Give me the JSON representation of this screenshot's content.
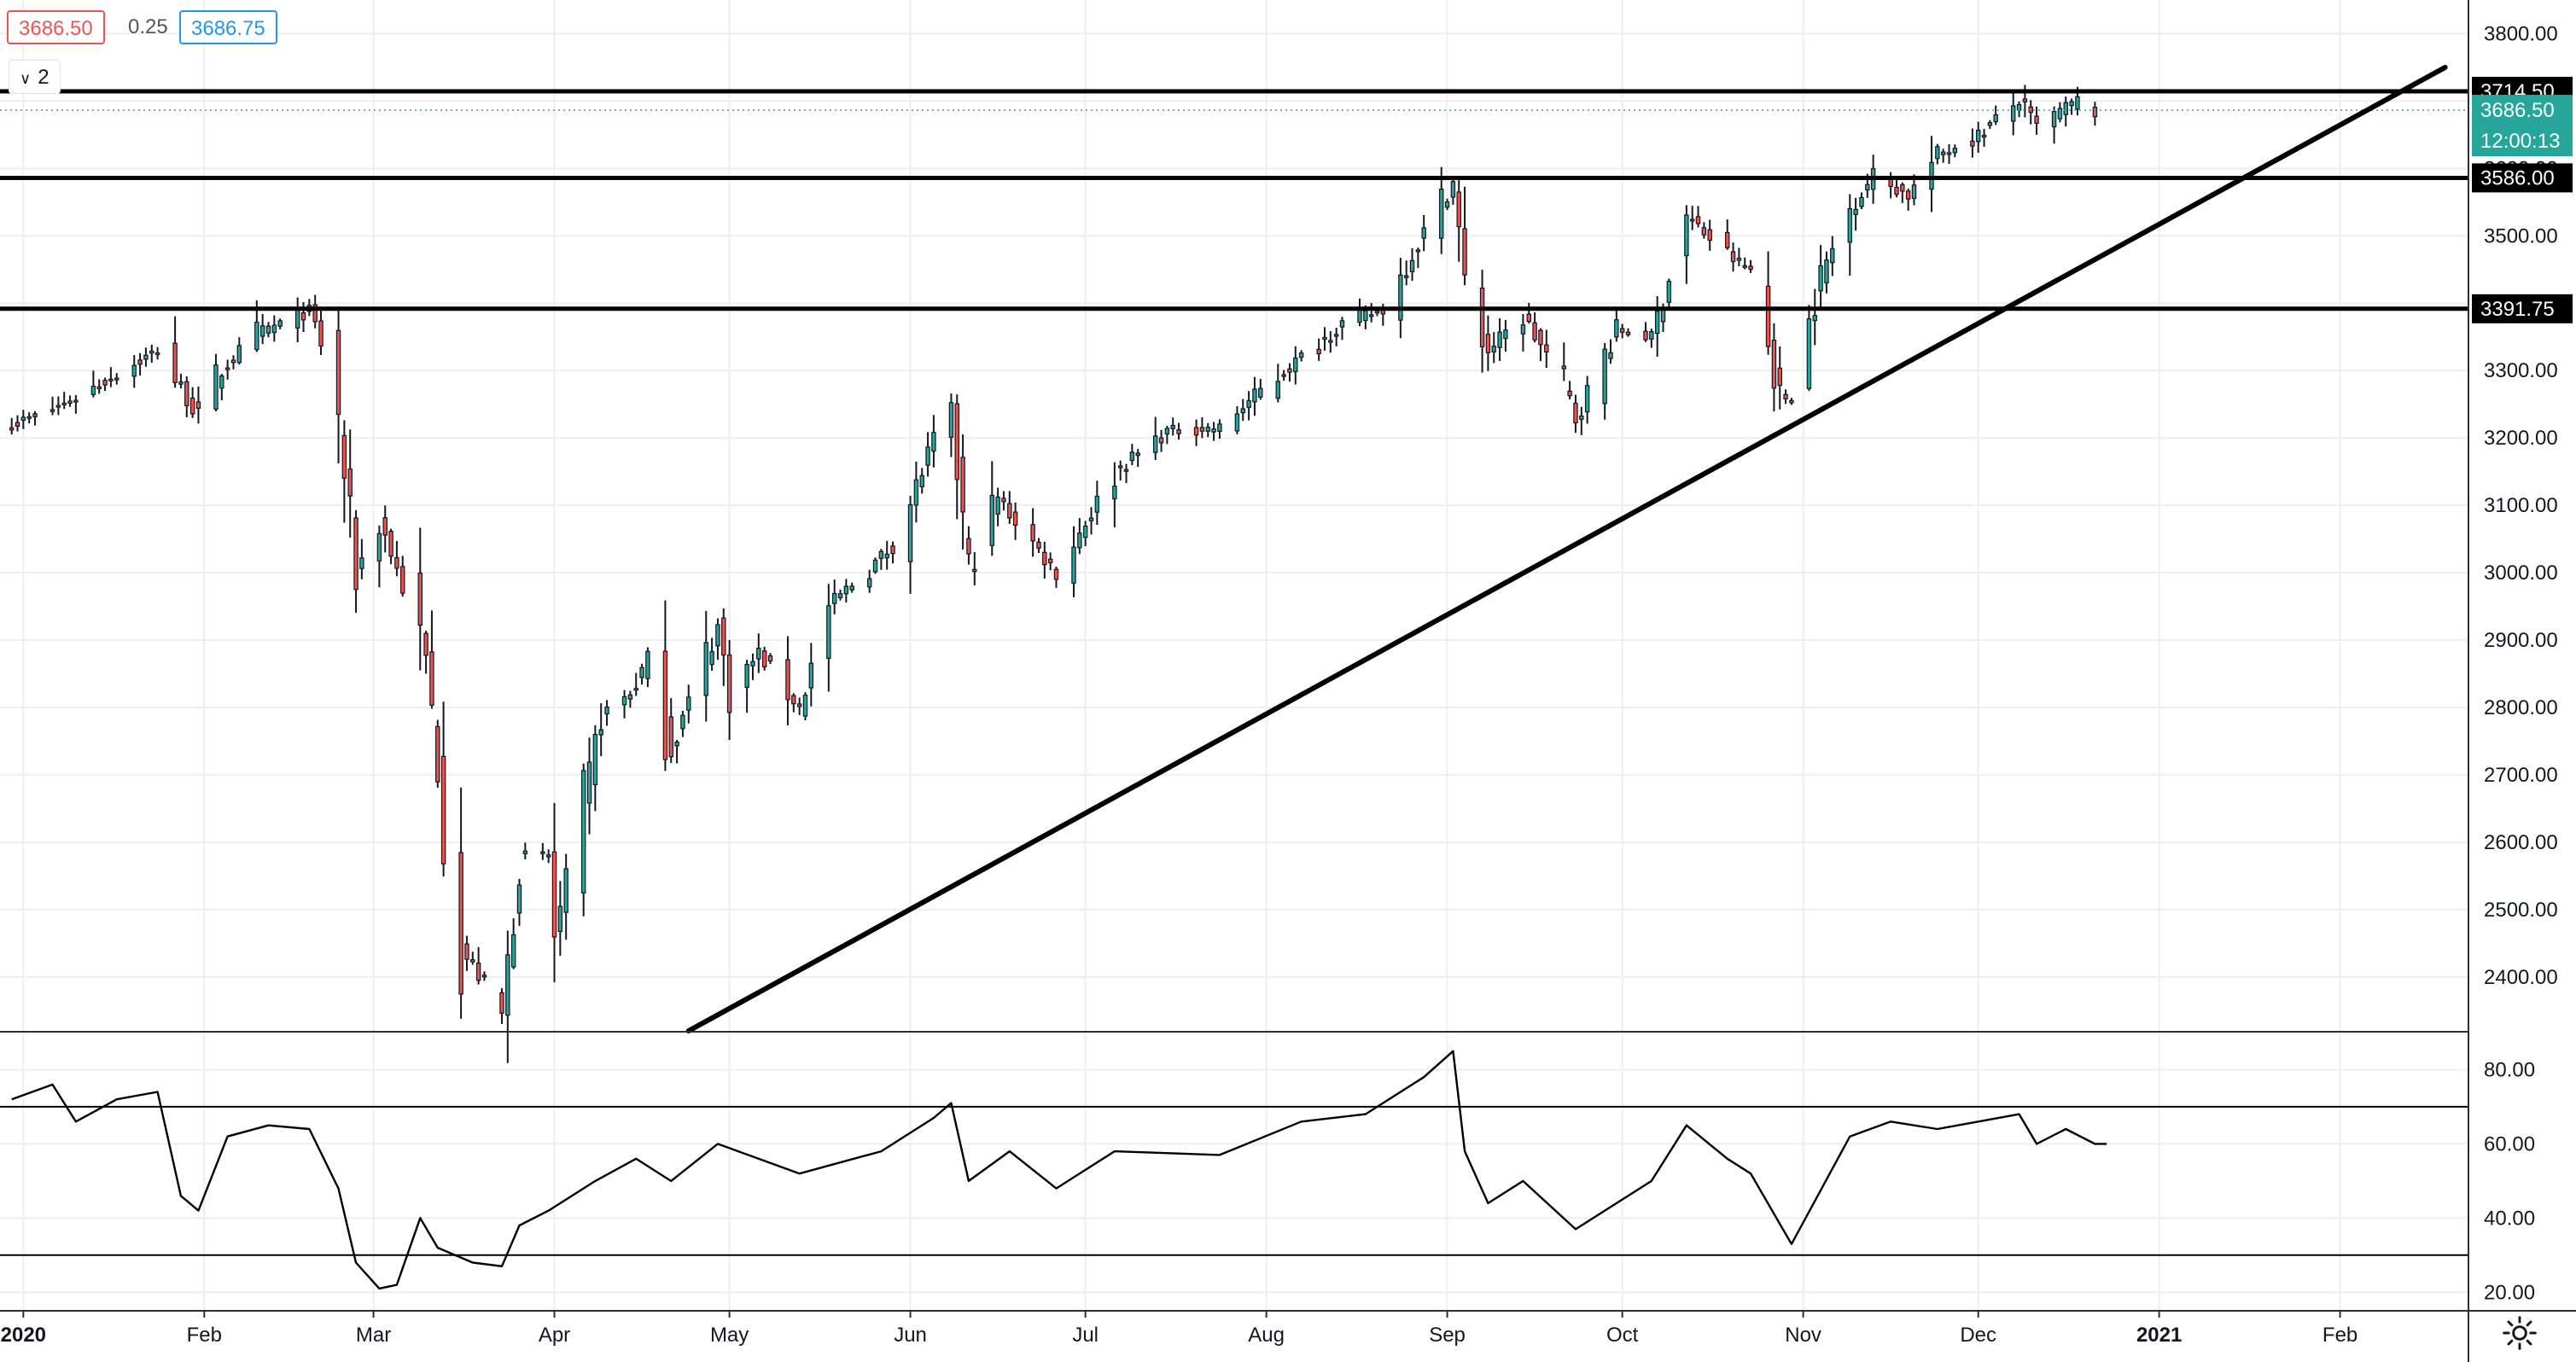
{
  "header": {
    "bid": "3686.50",
    "spread": "0.25",
    "ask": "3686.75",
    "collapsed_count": "2"
  },
  "colors": {
    "up": "#26a69a",
    "down": "#ef5350",
    "grid": "#edeef2",
    "axis_text": "#131722",
    "line": "#000000",
    "last_price_bg": "#26a69a"
  },
  "icons": {
    "settings": "gear-icon",
    "collapse": "chevron-down-icon"
  },
  "chart_data": [
    {
      "type": "candlestick",
      "ylim": [
        2320,
        3850
      ],
      "y_ticks": [
        2400,
        2500,
        2600,
        2700,
        2800,
        2900,
        3000,
        3100,
        3200,
        3300,
        3400,
        3500,
        3600,
        3700,
        3800
      ],
      "y_tick_labels": [
        "2400.00",
        "2500.00",
        "2600.00",
        "2700.00",
        "2800.00",
        "2900.00",
        "3000.00",
        "3100.00",
        "3200.00",
        "3300.00",
        "3400.00",
        "3500.00",
        "3600.00",
        "3700.00",
        "3800.00"
      ],
      "x_labels": [
        {
          "date": "2020-01-01",
          "label": "2020"
        },
        {
          "date": "2020-02-01",
          "label": "Feb"
        },
        {
          "date": "2020-03-01",
          "label": "Mar"
        },
        {
          "date": "2020-04-01",
          "label": "Apr"
        },
        {
          "date": "2020-05-01",
          "label": "May"
        },
        {
          "date": "2020-06-01",
          "label": "Jun"
        },
        {
          "date": "2020-07-01",
          "label": "Jul"
        },
        {
          "date": "2020-08-01",
          "label": "Aug"
        },
        {
          "date": "2020-09-01",
          "label": "Sep"
        },
        {
          "date": "2020-10-01",
          "label": "Oct"
        },
        {
          "date": "2020-11-01",
          "label": "Nov"
        },
        {
          "date": "2020-12-01",
          "label": "Dec"
        },
        {
          "date": "2021-01-01",
          "label": "2021"
        },
        {
          "date": "2021-02-01",
          "label": "Feb"
        }
      ],
      "x_range": [
        "2019-12-28",
        "2021-02-23"
      ],
      "waypoints": [
        [
          "2019-12-30",
          3220
        ],
        [
          "2020-01-03",
          3232
        ],
        [
          "2020-01-08",
          3250
        ],
        [
          "2020-01-15",
          3285
        ],
        [
          "2020-01-24",
          3330
        ],
        [
          "2020-01-31",
          3232
        ],
        [
          "2020-02-04",
          3300
        ],
        [
          "2020-02-10",
          3355
        ],
        [
          "2020-02-19",
          3388
        ],
        [
          "2020-02-21",
          3340
        ],
        [
          "2020-02-24",
          3220
        ],
        [
          "2020-02-27",
          3000
        ],
        [
          "2020-03-02",
          3080
        ],
        [
          "2020-03-06",
          2980
        ],
        [
          "2020-03-10",
          2870
        ],
        [
          "2020-03-12",
          2720
        ],
        [
          "2020-03-13",
          2620
        ],
        [
          "2020-03-16",
          2440
        ],
        [
          "2020-03-20",
          2390
        ],
        [
          "2020-03-23",
          2340
        ],
        [
          "2020-03-26",
          2580
        ],
        [
          "2020-03-31",
          2580
        ],
        [
          "2020-04-01",
          2460
        ],
        [
          "2020-04-06",
          2650
        ],
        [
          "2020-04-09",
          2790
        ],
        [
          "2020-04-14",
          2820
        ],
        [
          "2020-04-17",
          2870
        ],
        [
          "2020-04-21",
          2740
        ],
        [
          "2020-04-29",
          2920
        ],
        [
          "2020-05-01",
          2820
        ],
        [
          "2020-05-06",
          2880
        ],
        [
          "2020-05-13",
          2800
        ],
        [
          "2020-05-18",
          2950
        ],
        [
          "2020-05-29",
          3040
        ],
        [
          "2020-06-05",
          3195
        ],
        [
          "2020-06-08",
          3230
        ],
        [
          "2020-06-11",
          3000
        ],
        [
          "2020-06-16",
          3110
        ],
        [
          "2020-06-26",
          3000
        ],
        [
          "2020-07-06",
          3150
        ],
        [
          "2020-07-15",
          3210
        ],
        [
          "2020-07-24",
          3215
        ],
        [
          "2020-07-31",
          3270
        ],
        [
          "2020-08-14",
          3370
        ],
        [
          "2020-08-21",
          3390
        ],
        [
          "2020-08-28",
          3505
        ],
        [
          "2020-09-02",
          3580
        ],
        [
          "2020-09-04",
          3420
        ],
        [
          "2020-09-08",
          3330
        ],
        [
          "2020-09-14",
          3380
        ],
        [
          "2020-09-21",
          3280
        ],
        [
          "2020-09-23",
          3230
        ],
        [
          "2020-09-30",
          3360
        ],
        [
          "2020-10-06",
          3350
        ],
        [
          "2020-10-12",
          3530
        ],
        [
          "2020-10-19",
          3470
        ],
        [
          "2020-10-23",
          3450
        ],
        [
          "2020-10-28",
          3260
        ],
        [
          "2020-10-30",
          3260
        ],
        [
          "2020-11-04",
          3440
        ],
        [
          "2020-11-09",
          3540
        ],
        [
          "2020-11-13",
          3590
        ],
        [
          "2020-11-19",
          3560
        ],
        [
          "2020-11-24",
          3620
        ],
        [
          "2020-12-01",
          3650
        ],
        [
          "2020-12-08",
          3700
        ],
        [
          "2020-12-11",
          3660
        ],
        [
          "2020-12-16",
          3690
        ],
        [
          "2020-12-18",
          3700
        ],
        [
          "2020-12-21",
          3686
        ]
      ],
      "horizontal_levels": [
        {
          "value": 3714.5,
          "label": "3714.50"
        },
        {
          "value": 3586.0,
          "label": "3586.00"
        },
        {
          "value": 3391.75,
          "label": "3391.75"
        }
      ],
      "last_price": {
        "value": 3686.5,
        "label": "3686.50",
        "countdown": "12:00:13"
      },
      "trendline": {
        "from": [
          "2020-04-24",
          2320
        ],
        "to": [
          "2021-02-19",
          3750
        ]
      }
    },
    {
      "type": "line",
      "series": [
        {
          "name": "",
          "points": [
            [
              "2019-12-30",
              72
            ],
            [
              "2020-01-06",
              76
            ],
            [
              "2020-01-10",
              66
            ],
            [
              "2020-01-17",
              72
            ],
            [
              "2020-01-24",
              74
            ],
            [
              "2020-01-28",
              46
            ],
            [
              "2020-01-31",
              42
            ],
            [
              "2020-02-05",
              62
            ],
            [
              "2020-02-12",
              65
            ],
            [
              "2020-02-19",
              64
            ],
            [
              "2020-02-24",
              48
            ],
            [
              "2020-02-27",
              28
            ],
            [
              "2020-03-02",
              21
            ],
            [
              "2020-03-05",
              22
            ],
            [
              "2020-03-09",
              40
            ],
            [
              "2020-03-12",
              32
            ],
            [
              "2020-03-18",
              28
            ],
            [
              "2020-03-23",
              27
            ],
            [
              "2020-03-26",
              38
            ],
            [
              "2020-03-31",
              42
            ],
            [
              "2020-04-08",
              50
            ],
            [
              "2020-04-15",
              56
            ],
            [
              "2020-04-21",
              50
            ],
            [
              "2020-04-29",
              60
            ],
            [
              "2020-05-13",
              52
            ],
            [
              "2020-05-27",
              58
            ],
            [
              "2020-06-05",
              67
            ],
            [
              "2020-06-08",
              71
            ],
            [
              "2020-06-11",
              50
            ],
            [
              "2020-06-18",
              58
            ],
            [
              "2020-06-26",
              48
            ],
            [
              "2020-07-06",
              58
            ],
            [
              "2020-07-24",
              57
            ],
            [
              "2020-08-07",
              66
            ],
            [
              "2020-08-18",
              68
            ],
            [
              "2020-08-28",
              78
            ],
            [
              "2020-09-02",
              85
            ],
            [
              "2020-09-04",
              58
            ],
            [
              "2020-09-08",
              44
            ],
            [
              "2020-09-14",
              50
            ],
            [
              "2020-09-23",
              37
            ],
            [
              "2020-10-06",
              50
            ],
            [
              "2020-10-12",
              65
            ],
            [
              "2020-10-19",
              56
            ],
            [
              "2020-10-23",
              52
            ],
            [
              "2020-10-30",
              33
            ],
            [
              "2020-11-09",
              62
            ],
            [
              "2020-11-16",
              66
            ],
            [
              "2020-11-24",
              64
            ],
            [
              "2020-12-01",
              66
            ],
            [
              "2020-12-08",
              68
            ],
            [
              "2020-12-11",
              60
            ],
            [
              "2020-12-16",
              64
            ],
            [
              "2020-12-21",
              60
            ],
            [
              "2020-12-23",
              60
            ]
          ]
        }
      ],
      "ylim": [
        15,
        90
      ],
      "y_ticks": [
        20,
        40,
        60,
        80
      ],
      "y_tick_labels": [
        "20.00",
        "40.00",
        "60.00",
        "80.00"
      ],
      "reference_levels": [
        30,
        70
      ]
    }
  ]
}
